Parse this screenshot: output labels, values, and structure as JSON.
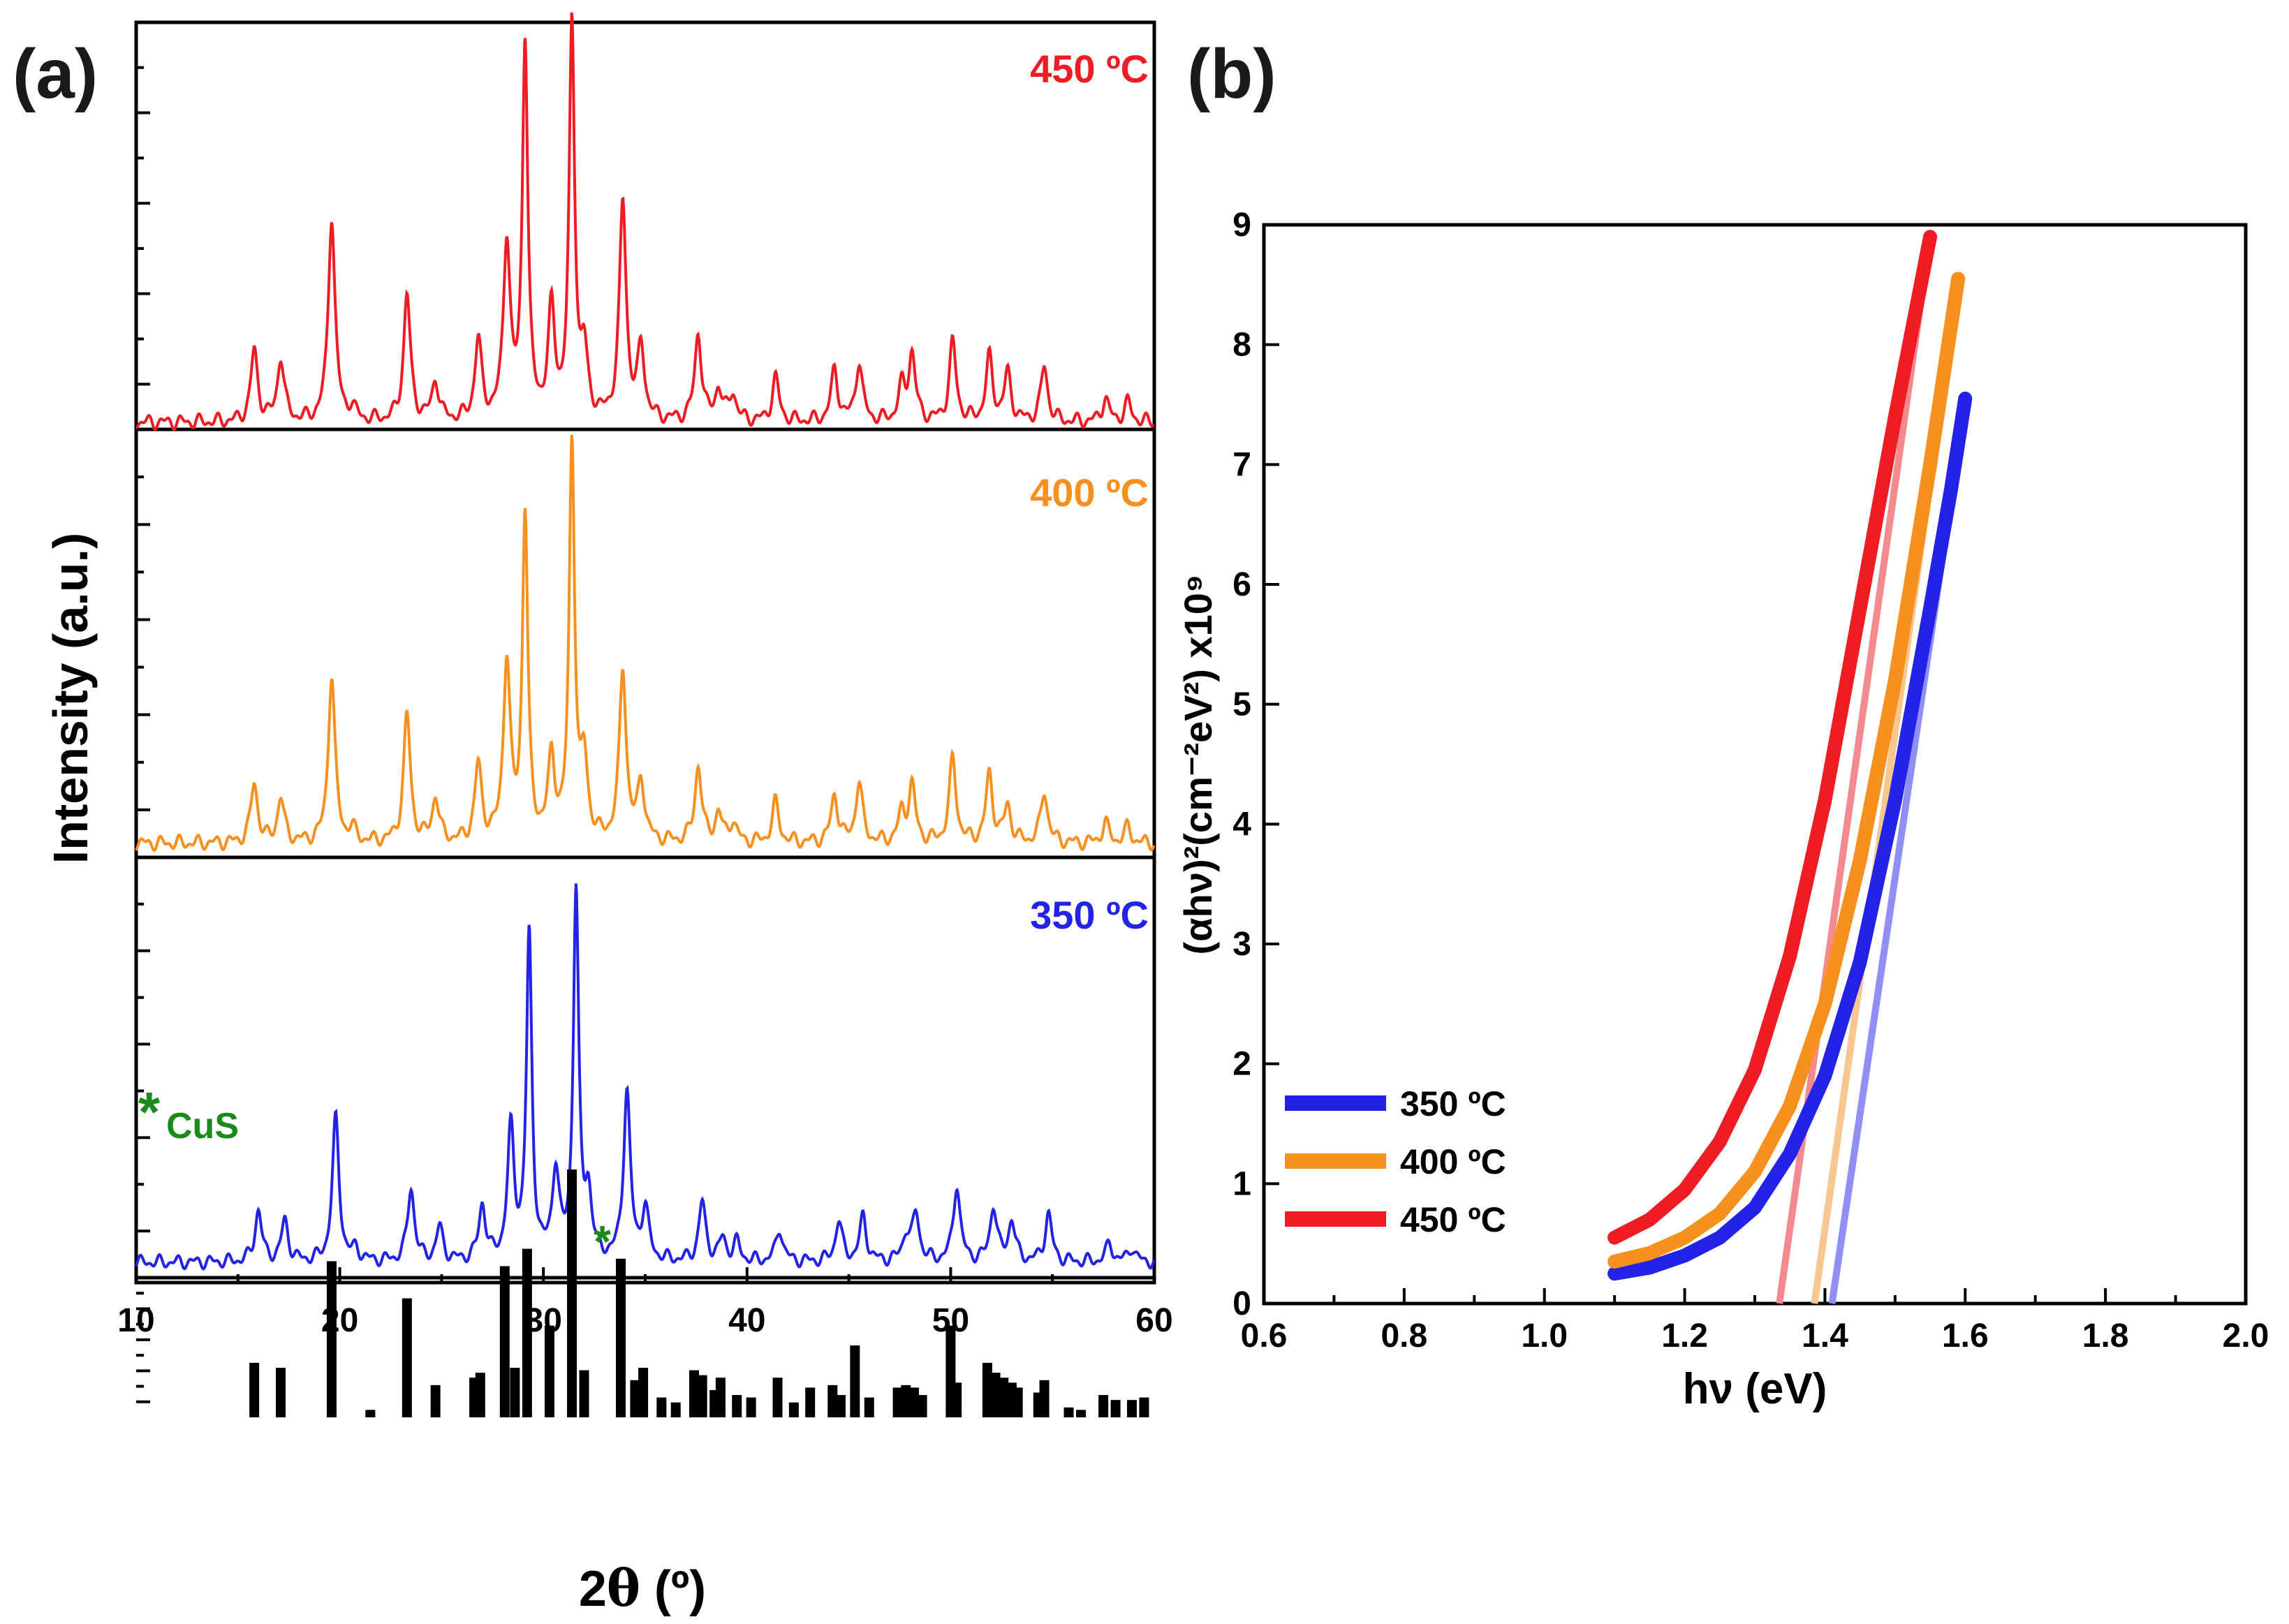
{
  "colors": {
    "t450": "#ef1c24",
    "t400": "#f7901e",
    "t350": "#2323e8",
    "marker": "#1a8a1a",
    "reference": "#000000"
  },
  "chart_data": [
    {
      "type": "line",
      "panel_label": "(a)",
      "title": "",
      "xlabel_prefix": "2",
      "xlabel_symbol": "θ",
      "xlabel_suffix": " (º)",
      "ylabel": "Intensity (a.u.)",
      "xlim": [
        10,
        60
      ],
      "xticks": [
        "10",
        "20",
        "30",
        "40",
        "50",
        "60"
      ],
      "marker_label_star": "*",
      "marker_label_text": "CuS",
      "marker_note": "*",
      "peaks_2theta": [
        15.8,
        17.1,
        19.6,
        20.6,
        23.3,
        24.7,
        26.8,
        28.2,
        29.1,
        30.4,
        31.4,
        32.0,
        33.9,
        34.8,
        37.6,
        38.6,
        39.3,
        41.4,
        44.3,
        45.5,
        47.6,
        48.1,
        50.1,
        51.9,
        52.8,
        54.6,
        57.6,
        58.7
      ],
      "series": [
        {
          "name": "450 ºC",
          "label": "450 ºC",
          "heights": [
            0.18,
            0.16,
            0.52,
            0.03,
            0.32,
            0.1,
            0.2,
            0.45,
            0.96,
            0.27,
            1.0,
            0.16,
            0.55,
            0.18,
            0.22,
            0.08,
            0.07,
            0.11,
            0.13,
            0.15,
            0.08,
            0.17,
            0.2,
            0.16,
            0.12,
            0.14,
            0.06,
            0.05
          ]
        },
        {
          "name": "400 ºC",
          "label": "400 ºC",
          "heights": [
            0.15,
            0.11,
            0.42,
            0.03,
            0.32,
            0.11,
            0.19,
            0.45,
            0.82,
            0.2,
            1.0,
            0.19,
            0.43,
            0.15,
            0.19,
            0.07,
            0.05,
            0.1,
            0.12,
            0.15,
            0.07,
            0.14,
            0.21,
            0.17,
            0.09,
            0.13,
            0.05,
            0.04
          ]
        },
        {
          "name": "350 ºC",
          "label": "350 ºC",
          "heights": [
            0.14,
            0.11,
            0.39,
            0.03,
            0.2,
            0.09,
            0.15,
            0.35,
            0.88,
            0.24,
            1.0,
            0.17,
            0.46,
            0.14,
            0.16,
            0.06,
            0.05,
            0.09,
            0.11,
            0.12,
            0.07,
            0.13,
            0.21,
            0.15,
            0.11,
            0.13,
            0.05,
            0.04
          ]
        }
      ],
      "reference_sticks": {
        "x": [
          15.8,
          17.1,
          19.6,
          21.5,
          23.3,
          24.7,
          26.6,
          26.9,
          28.1,
          28.6,
          29.2,
          30.3,
          31.4,
          32.0,
          33.8,
          34.5,
          34.9,
          35.8,
          36.5,
          37.4,
          37.8,
          38.4,
          38.7,
          39.5,
          40.2,
          41.5,
          42.3,
          43.1,
          44.2,
          44.6,
          45.3,
          46.0,
          47.4,
          47.8,
          48.2,
          48.6,
          50.0,
          50.3,
          51.8,
          52.2,
          52.6,
          53.0,
          53.3,
          54.3,
          54.6,
          55.8,
          56.4,
          57.5,
          58.1,
          58.9,
          59.5
        ],
        "heights": [
          0.22,
          0.2,
          0.63,
          0.03,
          0.48,
          0.13,
          0.16,
          0.18,
          0.61,
          0.2,
          0.68,
          0.37,
          1.0,
          0.19,
          0.64,
          0.15,
          0.2,
          0.08,
          0.06,
          0.19,
          0.17,
          0.11,
          0.16,
          0.09,
          0.08,
          0.16,
          0.06,
          0.12,
          0.13,
          0.09,
          0.29,
          0.08,
          0.12,
          0.13,
          0.12,
          0.09,
          0.37,
          0.14,
          0.22,
          0.18,
          0.16,
          0.14,
          0.12,
          0.1,
          0.15,
          0.04,
          0.03,
          0.09,
          0.07,
          0.07,
          0.08
        ]
      }
    },
    {
      "type": "line",
      "panel_label": "(b)",
      "title": "",
      "xlabel": "hν (eV)",
      "ylabel": "(αhν)²(cm⁻²eV²) x10⁹",
      "xlim": [
        0.6,
        2.0
      ],
      "ylim": [
        0,
        9
      ],
      "xticks": [
        "0.6",
        "0.8",
        "1.0",
        "1.2",
        "1.4",
        "1.6",
        "1.8",
        "2.0"
      ],
      "yticks": [
        "0",
        "1",
        "2",
        "3",
        "4",
        "5",
        "6",
        "7",
        "8",
        "9"
      ],
      "legend_position": "bottom-left",
      "series": [
        {
          "name": "350 ºC",
          "label": "350 ºC",
          "x": [
            1.1,
            1.15,
            1.2,
            1.25,
            1.3,
            1.35,
            1.4,
            1.45,
            1.5,
            1.55,
            1.58,
            1.6
          ],
          "y": [
            0.25,
            0.3,
            0.4,
            0.55,
            0.8,
            1.25,
            1.9,
            2.85,
            4.2,
            5.8,
            6.8,
            7.55
          ],
          "tangent": {
            "x": [
              1.41,
              1.6
            ],
            "y": [
              0.0,
              7.5
            ]
          }
        },
        {
          "name": "400 ºC",
          "label": "400 ºC",
          "x": [
            1.1,
            1.15,
            1.2,
            1.25,
            1.3,
            1.35,
            1.4,
            1.45,
            1.5,
            1.55,
            1.59
          ],
          "y": [
            0.35,
            0.42,
            0.55,
            0.75,
            1.1,
            1.65,
            2.5,
            3.7,
            5.2,
            7.0,
            8.55
          ],
          "tangent": {
            "x": [
              1.385,
              1.59
            ],
            "y": [
              0.0,
              8.5
            ]
          }
        },
        {
          "name": "450 ºC",
          "label": "450 ºC",
          "x": [
            1.1,
            1.15,
            1.2,
            1.25,
            1.3,
            1.35,
            1.4,
            1.45,
            1.5,
            1.55
          ],
          "y": [
            0.55,
            0.7,
            0.95,
            1.35,
            1.95,
            2.9,
            4.2,
            5.8,
            7.4,
            8.9
          ],
          "tangent": {
            "x": [
              1.335,
              1.55
            ],
            "y": [
              0.0,
              8.9
            ]
          }
        }
      ]
    }
  ]
}
